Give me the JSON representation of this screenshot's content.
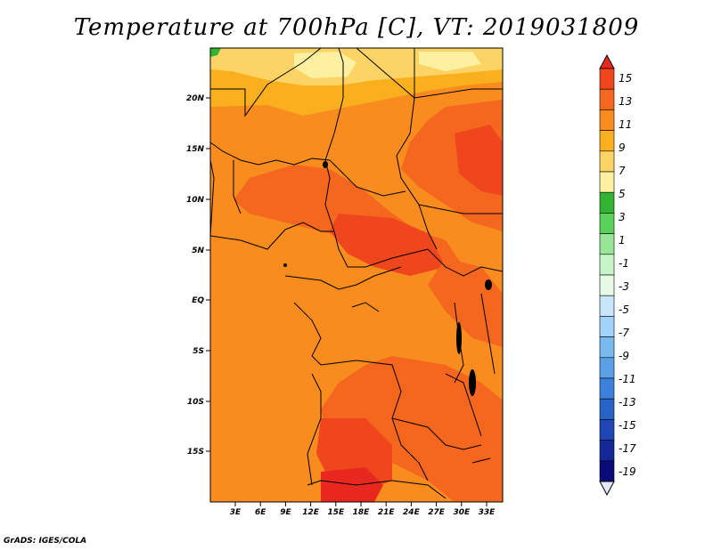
{
  "title": "Temperature at 700hPa [C], VT: 2019031809",
  "credit": "GrADS: IGES/COLA",
  "map": {
    "lat_ticks": [
      "20N",
      "15N",
      "10N",
      "5N",
      "EQ",
      "5S",
      "10S",
      "15S"
    ],
    "lon_ticks": [
      "3E",
      "6E",
      "9E",
      "12E",
      "15E",
      "18E",
      "21E",
      "24E",
      "27E",
      "30E",
      "33E"
    ]
  },
  "colorbar": {
    "labels": [
      "15",
      "13",
      "11",
      "9",
      "7",
      "5",
      "3",
      "1",
      "-1",
      "-3",
      "-5",
      "-7",
      "-9",
      "-11",
      "-13",
      "-15",
      "-17",
      "-19"
    ],
    "colors": [
      "#e8281e",
      "#f0461e",
      "#f5661e",
      "#f88c1e",
      "#fab01e",
      "#fcd466",
      "#fdf0a0",
      "#32b432",
      "#5ad25a",
      "#96e696",
      "#c8f5c8",
      "#e6fae6",
      "#c8e6fa",
      "#a0d2fa",
      "#78b9f0",
      "#5aa0e6",
      "#3c82dc",
      "#2864c8",
      "#1e46b4",
      "#14289a",
      "#0a0a78",
      "#e6e6fa"
    ]
  }
}
